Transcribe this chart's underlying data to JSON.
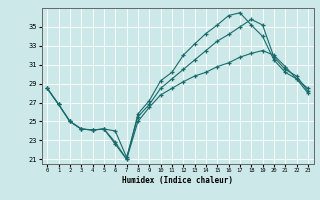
{
  "xlabel": "Humidex (Indice chaleur)",
  "background_color": "#cce8e8",
  "grid_color": "#ffffff",
  "line_color": "#1a6b6b",
  "xlim": [
    -0.5,
    23.5
  ],
  "ylim": [
    20.5,
    37.0
  ],
  "yticks": [
    21,
    23,
    25,
    27,
    29,
    31,
    33,
    35
  ],
  "xticks": [
    0,
    1,
    2,
    3,
    4,
    5,
    6,
    7,
    8,
    9,
    10,
    11,
    12,
    13,
    14,
    15,
    16,
    17,
    18,
    19,
    20,
    21,
    22,
    23
  ],
  "line1_x": [
    0,
    1,
    2,
    3,
    4,
    5,
    6,
    7,
    8,
    9,
    10,
    11,
    12,
    13,
    14,
    15,
    16,
    17,
    18,
    19,
    20,
    21,
    22,
    23
  ],
  "line1_y": [
    28.5,
    26.8,
    25.0,
    24.2,
    24.1,
    24.2,
    22.6,
    21.0,
    25.8,
    27.2,
    29.3,
    30.2,
    32.0,
    33.2,
    34.3,
    35.2,
    36.2,
    36.5,
    35.2,
    34.0,
    31.5,
    30.2,
    29.5,
    28.5
  ],
  "line2_x": [
    0,
    1,
    2,
    3,
    4,
    5,
    6,
    7,
    8,
    9,
    10,
    11,
    12,
    13,
    14,
    15,
    16,
    17,
    18,
    19,
    20,
    21,
    22,
    23
  ],
  "line2_y": [
    28.5,
    26.8,
    25.0,
    24.2,
    24.1,
    24.2,
    24.0,
    21.2,
    25.5,
    26.8,
    28.5,
    29.5,
    30.5,
    31.5,
    32.5,
    33.5,
    34.2,
    35.0,
    35.8,
    35.2,
    31.8,
    30.5,
    29.8,
    28.2
  ],
  "line3_x": [
    0,
    1,
    2,
    3,
    4,
    5,
    6,
    7,
    8,
    9,
    10,
    11,
    12,
    13,
    14,
    15,
    16,
    17,
    18,
    19,
    20,
    21,
    22,
    23
  ],
  "line3_y": [
    28.5,
    26.8,
    25.0,
    24.2,
    24.1,
    24.2,
    22.8,
    21.0,
    25.0,
    26.5,
    27.8,
    28.5,
    29.2,
    29.8,
    30.2,
    30.8,
    31.2,
    31.8,
    32.2,
    32.5,
    32.0,
    30.8,
    29.5,
    28.0
  ]
}
